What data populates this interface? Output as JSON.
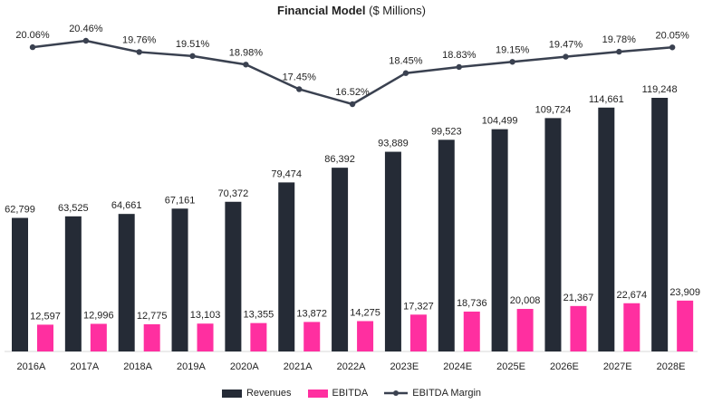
{
  "title": {
    "main": "Financial Model",
    "suffix": "($ Millions)"
  },
  "colors": {
    "revenues": "#252b36",
    "ebitda": "#ff2fa0",
    "margin": "#3a4150",
    "axis": "#d9d9d9"
  },
  "chart_data": {
    "type": "bar",
    "title": "Financial Model ($ Millions)",
    "categories": [
      "2016A",
      "2017A",
      "2018A",
      "2019A",
      "2020A",
      "2021A",
      "2022A",
      "2023E",
      "2024E",
      "2025E",
      "2026E",
      "2027E",
      "2028E"
    ],
    "series": [
      {
        "name": "Revenues",
        "type": "bar",
        "values": [
          62799,
          63525,
          64661,
          67161,
          70372,
          79474,
          86392,
          93889,
          99523,
          104499,
          109724,
          114661,
          119248
        ],
        "labels": [
          "62,799",
          "63,525",
          "64,661",
          "67,161",
          "70,372",
          "79,474",
          "86,392",
          "93,889",
          "99,523",
          "104,499",
          "109,724",
          "114,661",
          "119,248"
        ]
      },
      {
        "name": "EBITDA",
        "type": "bar",
        "values": [
          12597,
          12996,
          12775,
          13103,
          13355,
          13872,
          14275,
          17327,
          18736,
          20008,
          21367,
          22674,
          23909
        ],
        "labels": [
          "12,597",
          "12,996",
          "12,775",
          "13,103",
          "13,355",
          "13,872",
          "14,275",
          "17,327",
          "18,736",
          "20,008",
          "21,367",
          "22,674",
          "23,909"
        ]
      },
      {
        "name": "EBITDA Margin",
        "type": "line",
        "unit": "%",
        "values": [
          20.06,
          20.46,
          19.76,
          19.51,
          18.98,
          17.45,
          16.52,
          18.45,
          18.83,
          19.15,
          19.47,
          19.78,
          20.05
        ],
        "labels": [
          "20.06%",
          "20.46%",
          "19.76%",
          "19.51%",
          "18.98%",
          "17.45%",
          "16.52%",
          "18.45%",
          "18.83%",
          "19.15%",
          "19.47%",
          "19.78%",
          "20.05%"
        ]
      }
    ],
    "legend_position": "bottom",
    "grid": false
  },
  "legend": {
    "revenues": "Revenues",
    "ebitda": "EBITDA",
    "margin": "EBITDA Margin"
  }
}
